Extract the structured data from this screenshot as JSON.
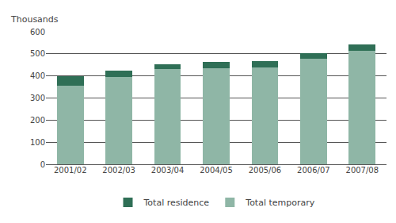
{
  "chart_data": {
    "type": "bar",
    "y_label": "Thousands",
    "categories": [
      "2001/02",
      "2002/03",
      "2003/04",
      "2004/05",
      "2005/06",
      "2006/07",
      "2007/08"
    ],
    "series": [
      {
        "name": "Total temporary",
        "color": "#8fb6a6",
        "values": [
          357,
          397,
          430,
          436,
          438,
          477,
          513
        ]
      },
      {
        "name": "Total residence",
        "color": "#2f6f56",
        "values": [
          41,
          26,
          22,
          26,
          30,
          26,
          29
        ]
      }
    ],
    "stacked": true,
    "ylim": [
      0,
      600
    ],
    "yticks": [
      0,
      100,
      200,
      300,
      400,
      500,
      600
    ],
    "grid": true,
    "legend": "bottom"
  }
}
